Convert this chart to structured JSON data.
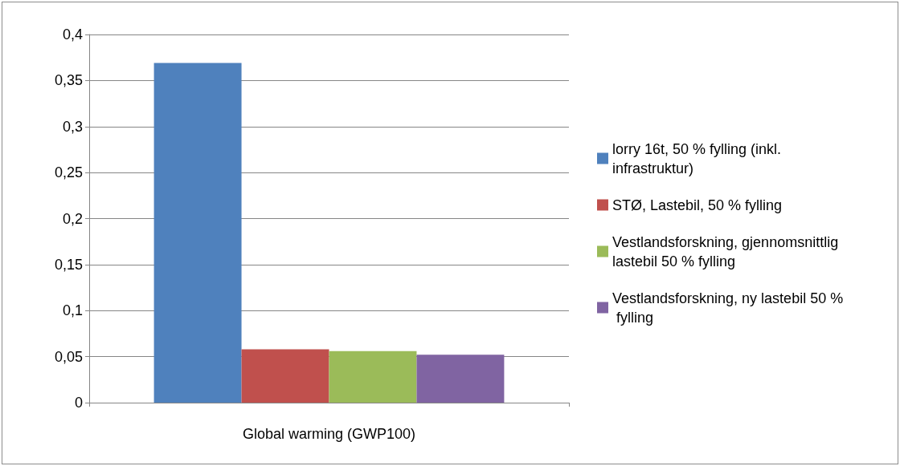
{
  "chart_data": {
    "type": "bar",
    "categories": [
      "Global warming (GWP100)"
    ],
    "series": [
      {
        "name": "lorry 16t, 50 % fylling (inkl. infrastruktur)",
        "color": "#4f81bd",
        "values": [
          0.369
        ]
      },
      {
        "name": "STØ, Lastebil, 50 % fylling",
        "color": "#c0504d",
        "values": [
          0.058
        ]
      },
      {
        "name": "Vestlandsforskning, gjennomsnittlig lastebil 50 % fylling",
        "color": "#9bbb59",
        "values": [
          0.056
        ]
      },
      {
        "name": "Vestlandsforskning, ny lastebil 50 % fylling",
        "color": "#8064a2",
        "values": [
          0.052
        ]
      }
    ],
    "ylim": [
      0,
      0.4
    ],
    "yticks": [
      0,
      {
        "value": 0.05,
        "label": "0,05"
      },
      {
        "value": 0.1,
        "label": "0,1"
      },
      {
        "value": 0.15,
        "label": "0,15"
      },
      {
        "value": 0.2,
        "label": "0,2"
      },
      {
        "value": 0.25,
        "label": "0,25"
      },
      {
        "value": 0.3,
        "label": "0,3"
      },
      {
        "value": 0.35,
        "label": "0,35"
      },
      {
        "value": 0.4,
        "label": "0,4"
      }
    ],
    "grid": "y",
    "legend": "right"
  }
}
